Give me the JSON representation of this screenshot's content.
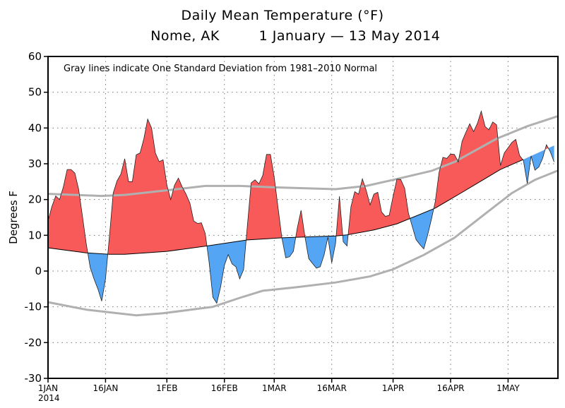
{
  "chart_data": {
    "type": "area",
    "title": "Daily Mean Temperature (°F)",
    "subtitle_location": "Nome, AK",
    "subtitle_dates": "1 January — 13 May 2014",
    "annotation": "Gray lines indicate One Standard Deviation from 1981–2010 Normal",
    "ylabel": "Degrees F",
    "xlabel": "",
    "ylim": [
      -30,
      60
    ],
    "xlim": [
      "2014-01-01",
      "2014-05-14"
    ],
    "grid": true,
    "yticks": [
      "-30",
      "-20",
      "-10",
      "0",
      "10",
      "20",
      "30",
      "40",
      "50",
      "60"
    ],
    "xticks": [
      {
        "date": "2014-01-01",
        "label": "1JAN",
        "sublabel": "2014"
      },
      {
        "date": "2014-01-16",
        "label": "16JAN"
      },
      {
        "date": "2014-02-01",
        "label": "1FEB"
      },
      {
        "date": "2014-02-16",
        "label": "16FEB"
      },
      {
        "date": "2014-03-01",
        "label": "1MAR"
      },
      {
        "date": "2014-03-16",
        "label": "16MAR"
      },
      {
        "date": "2014-04-01",
        "label": "1APR"
      },
      {
        "date": "2014-04-16",
        "label": "16APR"
      },
      {
        "date": "2014-05-01",
        "label": "1MAY"
      }
    ],
    "colors": {
      "above": "#f85a5a",
      "below": "#55a5f5",
      "sd_lines": "#b0b0b0",
      "normal": "#000000"
    },
    "series": [
      {
        "role": "observed",
        "values": [
          [
            "2014-01-01",
            14
          ],
          [
            "2014-01-02",
            18
          ],
          [
            "2014-01-03",
            21
          ],
          [
            "2014-01-04",
            20
          ],
          [
            "2014-01-05",
            23.5
          ],
          [
            "2014-01-06",
            28.4
          ],
          [
            "2014-01-07",
            28.4
          ],
          [
            "2014-01-08",
            27.4
          ],
          [
            "2014-01-09",
            22.8
          ],
          [
            "2014-01-10",
            15.1
          ],
          [
            "2014-01-11",
            7.4
          ],
          [
            "2014-01-12",
            1
          ],
          [
            "2014-01-13",
            -2.2
          ],
          [
            "2014-01-14",
            -5
          ],
          [
            "2014-01-15",
            -8.4
          ],
          [
            "2014-01-16",
            -2.2
          ],
          [
            "2014-01-17",
            9.6
          ],
          [
            "2014-01-18",
            21.8
          ],
          [
            "2014-01-19",
            25.2
          ],
          [
            "2014-01-20",
            27.1
          ],
          [
            "2014-01-21",
            31.4
          ],
          [
            "2014-01-22",
            25
          ],
          [
            "2014-01-23",
            25
          ],
          [
            "2014-01-24",
            32.5
          ],
          [
            "2014-01-25",
            33
          ],
          [
            "2014-01-26",
            37
          ],
          [
            "2014-01-27",
            42.5
          ],
          [
            "2014-01-28",
            40
          ],
          [
            "2014-01-29",
            33
          ],
          [
            "2014-01-30",
            30.6
          ],
          [
            "2014-01-31",
            31.1
          ],
          [
            "2014-02-01",
            24
          ],
          [
            "2014-02-02",
            20
          ],
          [
            "2014-02-03",
            24
          ],
          [
            "2014-02-04",
            26
          ],
          [
            "2014-02-05",
            23.5
          ],
          [
            "2014-02-06",
            21.5
          ],
          [
            "2014-02-07",
            19
          ],
          [
            "2014-02-08",
            14
          ],
          [
            "2014-02-09",
            13.3
          ],
          [
            "2014-02-10",
            13.5
          ],
          [
            "2014-02-11",
            10.5
          ],
          [
            "2014-02-12",
            2.6
          ],
          [
            "2014-02-13",
            -7.3
          ],
          [
            "2014-02-14",
            -9
          ],
          [
            "2014-02-15",
            -4.5
          ],
          [
            "2014-02-16",
            1.6
          ],
          [
            "2014-02-17",
            4.6
          ],
          [
            "2014-02-18",
            2
          ],
          [
            "2014-02-19",
            1.2
          ],
          [
            "2014-02-20",
            -2.2
          ],
          [
            "2014-02-21",
            0.4
          ],
          [
            "2014-02-22",
            12.8
          ],
          [
            "2014-02-23",
            24.7
          ],
          [
            "2014-02-24",
            25.5
          ],
          [
            "2014-02-25",
            24.4
          ],
          [
            "2014-02-26",
            26.7
          ],
          [
            "2014-02-27",
            32.6
          ],
          [
            "2014-02-28",
            32.6
          ],
          [
            "2014-03-01",
            26.2
          ],
          [
            "2014-03-02",
            17.7
          ],
          [
            "2014-03-03",
            9.3
          ],
          [
            "2014-03-04",
            3.7
          ],
          [
            "2014-03-05",
            4
          ],
          [
            "2014-03-06",
            5.5
          ],
          [
            "2014-03-07",
            12
          ],
          [
            "2014-03-08",
            17
          ],
          [
            "2014-03-09",
            9.7
          ],
          [
            "2014-03-10",
            3.5
          ],
          [
            "2014-03-11",
            2.1
          ],
          [
            "2014-03-12",
            0.8
          ],
          [
            "2014-03-13",
            1.2
          ],
          [
            "2014-03-14",
            4.5
          ],
          [
            "2014-03-15",
            9.5
          ],
          [
            "2014-03-16",
            2.3
          ],
          [
            "2014-03-17",
            7.7
          ],
          [
            "2014-03-18",
            20.9
          ],
          [
            "2014-03-19",
            8.2
          ],
          [
            "2014-03-20",
            7
          ],
          [
            "2014-03-21",
            18
          ],
          [
            "2014-03-22",
            22.2
          ],
          [
            "2014-03-23",
            21.5
          ],
          [
            "2014-03-24",
            25.8
          ],
          [
            "2014-03-25",
            22.5
          ],
          [
            "2014-03-26",
            18.5
          ],
          [
            "2014-03-27",
            21.5
          ],
          [
            "2014-03-28",
            22
          ],
          [
            "2014-03-29",
            16.5
          ],
          [
            "2014-03-30",
            15.3
          ],
          [
            "2014-03-31",
            15.6
          ],
          [
            "2014-04-01",
            20.9
          ],
          [
            "2014-04-02",
            25.7
          ],
          [
            "2014-04-03",
            25.6
          ],
          [
            "2014-04-04",
            23.2
          ],
          [
            "2014-04-05",
            16.2
          ],
          [
            "2014-04-06",
            12.5
          ],
          [
            "2014-04-07",
            8.8
          ],
          [
            "2014-04-08",
            7.4
          ],
          [
            "2014-04-09",
            6.2
          ],
          [
            "2014-04-10",
            10
          ],
          [
            "2014-04-11",
            14.5
          ],
          [
            "2014-04-12",
            19.4
          ],
          [
            "2014-04-13",
            27.6
          ],
          [
            "2014-04-14",
            31.8
          ],
          [
            "2014-04-15",
            31.5
          ],
          [
            "2014-04-16",
            32.7
          ],
          [
            "2014-04-17",
            32.6
          ],
          [
            "2014-04-18",
            30.5
          ],
          [
            "2014-04-19",
            36.3
          ],
          [
            "2014-04-20",
            38.8
          ],
          [
            "2014-04-21",
            41.2
          ],
          [
            "2014-04-22",
            39
          ],
          [
            "2014-04-23",
            41.3
          ],
          [
            "2014-04-24",
            44.7
          ],
          [
            "2014-04-25",
            40.4
          ],
          [
            "2014-04-26",
            39.5
          ],
          [
            "2014-04-27",
            41.7
          ],
          [
            "2014-04-28",
            40.9
          ],
          [
            "2014-04-29",
            29.5
          ],
          [
            "2014-04-30",
            33
          ],
          [
            "2014-05-01",
            34.5
          ],
          [
            "2014-05-02",
            36
          ],
          [
            "2014-05-03",
            36.8
          ],
          [
            "2014-05-04",
            32.3
          ],
          [
            "2014-05-05",
            30.9
          ],
          [
            "2014-05-06",
            24.5
          ],
          [
            "2014-05-07",
            32.2
          ],
          [
            "2014-05-08",
            28.2
          ],
          [
            "2014-05-09",
            29.1
          ],
          [
            "2014-05-10",
            31.5
          ],
          [
            "2014-05-11",
            35.3
          ],
          [
            "2014-05-12",
            33.4
          ],
          [
            "2014-05-13",
            30.5
          ]
        ]
      },
      {
        "role": "normal",
        "values": [
          [
            "2014-01-01",
            6.5
          ],
          [
            "2014-01-11",
            5.1
          ],
          [
            "2014-01-17",
            4.7
          ],
          [
            "2014-01-21",
            4.7
          ],
          [
            "2014-02-01",
            5.5
          ],
          [
            "2014-02-12",
            7.1
          ],
          [
            "2014-02-22",
            8.7
          ],
          [
            "2014-03-03",
            9.3
          ],
          [
            "2014-03-17",
            9.8
          ],
          [
            "2014-03-20",
            10.1
          ],
          [
            "2014-03-27",
            11.5
          ],
          [
            "2014-04-02",
            13.2
          ],
          [
            "2014-04-12",
            17.6
          ],
          [
            "2014-04-19",
            22
          ],
          [
            "2014-04-29",
            28.4
          ],
          [
            "2014-05-05",
            31.2
          ],
          [
            "2014-05-14",
            35.6
          ]
        ]
      },
      {
        "role": "normal_plus_1sd",
        "values": [
          [
            "2014-01-01",
            21.6
          ],
          [
            "2014-01-15",
            21
          ],
          [
            "2014-01-21",
            21.3
          ],
          [
            "2014-02-02",
            22.7
          ],
          [
            "2014-02-11",
            23.8
          ],
          [
            "2014-02-20",
            23.8
          ],
          [
            "2014-03-01",
            23.4
          ],
          [
            "2014-03-17",
            22.9
          ],
          [
            "2014-03-25",
            23.8
          ],
          [
            "2014-04-01",
            25.5
          ],
          [
            "2014-04-11",
            28
          ],
          [
            "2014-04-17",
            30.5
          ],
          [
            "2014-04-28",
            37
          ],
          [
            "2014-05-06",
            40.5
          ],
          [
            "2014-05-14",
            43.3
          ]
        ]
      },
      {
        "role": "normal_minus_1sd",
        "values": [
          [
            "2014-01-01",
            -8.7
          ],
          [
            "2014-01-11",
            -10.8
          ],
          [
            "2014-01-24",
            -12.4
          ],
          [
            "2014-01-31",
            -11.8
          ],
          [
            "2014-02-13",
            -10
          ],
          [
            "2014-02-20",
            -7.5
          ],
          [
            "2014-02-26",
            -5.5
          ],
          [
            "2014-03-07",
            -4.5
          ],
          [
            "2014-03-17",
            -3.2
          ],
          [
            "2014-03-26",
            -1.5
          ],
          [
            "2014-04-01",
            0.5
          ],
          [
            "2014-04-09",
            4.5
          ],
          [
            "2014-04-17",
            9.3
          ],
          [
            "2014-04-25",
            16
          ],
          [
            "2014-05-02",
            21.8
          ],
          [
            "2014-05-08",
            25.5
          ],
          [
            "2014-05-14",
            28.1
          ]
        ]
      }
    ]
  }
}
